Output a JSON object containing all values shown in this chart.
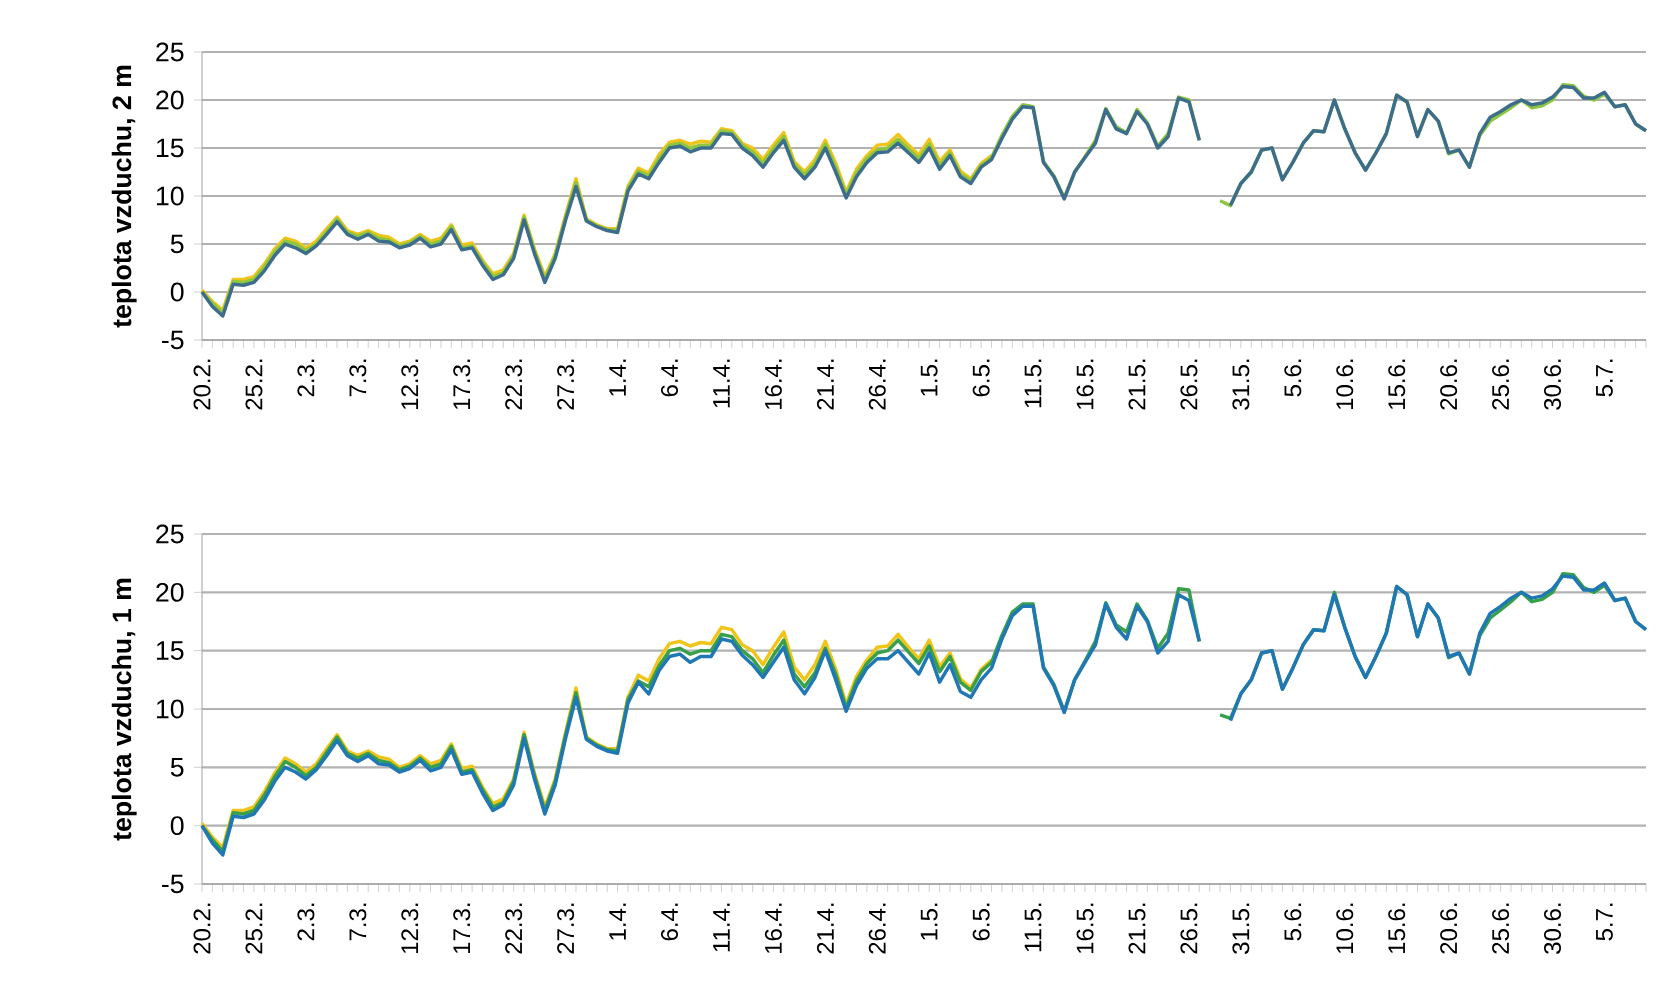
{
  "chart_data": [
    {
      "type": "line",
      "ylabel": "teplota vzduchu, 2 m",
      "categories": [
        "20.2.",
        null,
        null,
        null,
        null,
        "25.2.",
        null,
        null,
        null,
        null,
        "2.3.",
        null,
        null,
        null,
        null,
        "7.3.",
        null,
        null,
        null,
        null,
        "12.3.",
        null,
        null,
        null,
        null,
        "17.3.",
        null,
        null,
        null,
        null,
        "22.3.",
        null,
        null,
        null,
        null,
        "27.3.",
        null,
        null,
        null,
        null,
        "1.4.",
        null,
        null,
        null,
        null,
        "6.4.",
        null,
        null,
        null,
        null,
        "11.4.",
        null,
        null,
        null,
        null,
        "16.4.",
        null,
        null,
        null,
        null,
        "21.4.",
        null,
        null,
        null,
        null,
        "26.4.",
        null,
        null,
        null,
        null,
        "1.5.",
        null,
        null,
        null,
        null,
        "6.5.",
        null,
        null,
        null,
        null,
        "11.5.",
        null,
        null,
        null,
        null,
        "16.5.",
        null,
        null,
        null,
        null,
        "21.5.",
        null,
        null,
        null,
        null,
        "26.5.",
        null,
        null,
        null,
        null,
        "31.5.",
        null,
        null,
        null,
        null,
        "5.6.",
        null,
        null,
        null,
        null,
        "10.6.",
        null,
        null,
        null,
        null,
        "15.6.",
        null,
        null,
        null,
        null,
        "20.6.",
        null,
        null,
        null,
        null,
        "25.6.",
        null,
        null,
        null,
        null,
        "30.6.",
        null,
        null,
        null,
        null,
        "5.7.",
        null,
        null,
        null,
        null
      ],
      "ylim": [
        -5,
        25
      ],
      "yticks": [
        -5,
        0,
        5,
        10,
        15,
        20,
        25
      ],
      "grid": "y",
      "series": [
        {
          "color": "#f0c419",
          "values": [
            0.2,
            -1.0,
            -1.9,
            1.3,
            1.3,
            1.6,
            2.9,
            4.5,
            5.6,
            5.3,
            4.6,
            5.3,
            6.6,
            7.8,
            6.4,
            6.0,
            6.4,
            5.9,
            5.7,
            5.0,
            5.3,
            6.0,
            5.3,
            5.6,
            7.0,
            4.9,
            5.1,
            3.3,
            1.9,
            2.3,
            4.0,
            8.0,
            4.5,
            1.6,
            4.0,
            8.0,
            11.8,
            7.6,
            7.0,
            6.6,
            6.6,
            11.0,
            12.9,
            12.4,
            14.3,
            15.6,
            15.8,
            15.4,
            15.7,
            15.6,
            17.0,
            16.8,
            15.5,
            15.0,
            13.8,
            15.3,
            16.6,
            13.6,
            12.5,
            13.8,
            15.8,
            13.4,
            10.4,
            12.8,
            14.2,
            15.3,
            15.4,
            16.4,
            15.3,
            14.3,
            15.9,
            13.6,
            14.8,
            12.6,
            11.8,
            13.4,
            14.2,
            null,
            null,
            null,
            null,
            null,
            null,
            null,
            null,
            null,
            null,
            null,
            null,
            null,
            null,
            null,
            null,
            null,
            null,
            null,
            null,
            null,
            null,
            null,
            null,
            null,
            null,
            null,
            null,
            null,
            null,
            null,
            null,
            null,
            null,
            null,
            null,
            null,
            null,
            null,
            null,
            null,
            null,
            null,
            null,
            null,
            null,
            null,
            null,
            null,
            null,
            null,
            null,
            null,
            null,
            null,
            null,
            null,
            null,
            null,
            null,
            null,
            null,
            null
          ]
        },
        {
          "color": "#8dc63f",
          "values": [
            0,
            -1.2,
            -2.2,
            1.1,
            1.0,
            1.3,
            2.6,
            4.2,
            5.3,
            5.0,
            4.3,
            5.0,
            6.3,
            7.6,
            6.2,
            5.8,
            6.2,
            5.6,
            5.4,
            4.8,
            5.1,
            5.8,
            5.0,
            5.3,
            6.8,
            4.6,
            4.8,
            3.1,
            1.6,
            2.0,
            3.8,
            7.8,
            4.3,
            1.3,
            3.8,
            7.8,
            11.4,
            7.5,
            6.9,
            6.5,
            6.4,
            10.8,
            12.6,
            12.1,
            13.9,
            15.3,
            15.5,
            15.0,
            15.3,
            15.3,
            16.8,
            16.6,
            15.3,
            14.6,
            13.4,
            14.9,
            16.2,
            13.3,
            12.2,
            13.4,
            15.4,
            13.0,
            10.1,
            12.4,
            13.9,
            14.8,
            15.0,
            15.9,
            14.9,
            13.9,
            15.4,
            13.2,
            14.5,
            12.3,
            11.6,
            13.2,
            14.0,
            16.3,
            18.3,
            19.5,
            19.3,
            13.6,
            12.1,
            9.8,
            12.5,
            14.1,
            15.8,
            19.1,
            17.2,
            16.6,
            19.0,
            17.6,
            15.2,
            16.5,
            20.3,
            20.0,
            15.8,
            null,
            9.5,
            9.0,
            11.3,
            12.5,
            14.8,
            15.0,
            11.7,
            13.5,
            15.5,
            16.8,
            16.7,
            20.0,
            17.0,
            14.5,
            12.7,
            14.5,
            16.5,
            20.5,
            19.8,
            16.2,
            19.0,
            17.8,
            14.4,
            14.8,
            13.0,
            16.3,
            17.8,
            18.5,
            19.2,
            20.0,
            19.2,
            19.4,
            20.0,
            21.6,
            21.5,
            20.4,
            20.0,
            20.6,
            19.3,
            19.5,
            17.5,
            16.8
          ]
        },
        {
          "color": "#3d6d8c",
          "values": [
            0,
            -1.5,
            -2.5,
            0.8,
            0.7,
            1.0,
            2.2,
            3.8,
            5.0,
            4.6,
            4.0,
            4.8,
            6.0,
            7.3,
            6.0,
            5.5,
            6.0,
            5.3,
            5.2,
            4.6,
            4.9,
            5.6,
            4.7,
            5.0,
            6.5,
            4.4,
            4.6,
            2.8,
            1.3,
            1.8,
            3.5,
            7.5,
            4.0,
            1.0,
            3.5,
            7.5,
            11.0,
            7.4,
            6.8,
            6.4,
            6.2,
            10.5,
            12.3,
            11.8,
            13.5,
            15.0,
            15.2,
            14.6,
            15.0,
            15.0,
            16.5,
            16.4,
            15.0,
            14.2,
            13.0,
            14.5,
            15.8,
            13.0,
            11.8,
            13.0,
            15.0,
            12.5,
            9.8,
            12.0,
            13.5,
            14.5,
            14.6,
            15.5,
            14.5,
            13.5,
            15.0,
            12.8,
            14.2,
            12.0,
            11.3,
            13.0,
            13.8,
            16.0,
            18.0,
            19.3,
            19.2,
            13.5,
            12.0,
            9.7,
            12.5,
            14.0,
            15.5,
            19.0,
            17.0,
            16.5,
            18.8,
            17.5,
            15.0,
            16.2,
            20.2,
            19.8,
            15.8,
            null,
            null,
            9.0,
            11.3,
            12.5,
            14.8,
            15.0,
            11.7,
            13.5,
            15.5,
            16.8,
            16.7,
            20.0,
            17.0,
            14.5,
            12.7,
            14.5,
            16.5,
            20.5,
            19.8,
            16.2,
            19.0,
            17.8,
            14.5,
            14.8,
            13.0,
            16.5,
            18.2,
            18.8,
            19.5,
            20.0,
            19.5,
            19.7,
            20.3,
            21.4,
            21.3,
            20.2,
            20.2,
            20.8,
            19.3,
            19.5,
            17.5,
            16.8
          ]
        }
      ]
    },
    {
      "type": "line",
      "ylabel": "teplota vzduchu, 1 m",
      "categories": [
        "20.2.",
        null,
        null,
        null,
        null,
        "25.2.",
        null,
        null,
        null,
        null,
        "2.3.",
        null,
        null,
        null,
        null,
        "7.3.",
        null,
        null,
        null,
        null,
        "12.3.",
        null,
        null,
        null,
        null,
        "17.3.",
        null,
        null,
        null,
        null,
        "22.3.",
        null,
        null,
        null,
        null,
        "27.3.",
        null,
        null,
        null,
        null,
        "1.4.",
        null,
        null,
        null,
        null,
        "6.4.",
        null,
        null,
        null,
        null,
        "11.4.",
        null,
        null,
        null,
        null,
        "16.4.",
        null,
        null,
        null,
        null,
        "21.4.",
        null,
        null,
        null,
        null,
        "26.4.",
        null,
        null,
        null,
        null,
        "1.5.",
        null,
        null,
        null,
        null,
        "6.5.",
        null,
        null,
        null,
        null,
        "11.5.",
        null,
        null,
        null,
        null,
        "16.5.",
        null,
        null,
        null,
        null,
        "21.5.",
        null,
        null,
        null,
        null,
        "26.5.",
        null,
        null,
        null,
        null,
        "31.5.",
        null,
        null,
        null,
        null,
        "5.6.",
        null,
        null,
        null,
        null,
        "10.6.",
        null,
        null,
        null,
        null,
        "15.6.",
        null,
        null,
        null,
        null,
        "20.6.",
        null,
        null,
        null,
        null,
        "25.6.",
        null,
        null,
        null,
        null,
        "30.6.",
        null,
        null,
        null,
        null,
        "5.7.",
        null,
        null,
        null,
        null
      ],
      "ylim": [
        -5,
        25
      ],
      "yticks": [
        -5,
        0,
        5,
        10,
        15,
        20,
        25
      ],
      "grid": "y",
      "series": [
        {
          "color": "#f0c419",
          "values": [
            0.2,
            -1.0,
            -1.9,
            1.3,
            1.3,
            1.6,
            2.9,
            4.5,
            5.8,
            5.3,
            4.6,
            5.3,
            6.6,
            7.8,
            6.4,
            6.0,
            6.4,
            5.9,
            5.7,
            5.0,
            5.3,
            6.0,
            5.3,
            5.6,
            7.0,
            4.9,
            5.1,
            3.3,
            1.9,
            2.3,
            4.0,
            8.0,
            4.5,
            1.6,
            4.0,
            8.0,
            11.8,
            7.6,
            7.0,
            6.6,
            6.6,
            11.0,
            12.9,
            12.4,
            14.3,
            15.6,
            15.8,
            15.4,
            15.7,
            15.6,
            17.0,
            16.8,
            15.5,
            15.0,
            13.8,
            15.3,
            16.6,
            13.6,
            12.5,
            13.8,
            15.8,
            13.4,
            10.4,
            12.8,
            14.2,
            15.3,
            15.4,
            16.4,
            15.3,
            14.3,
            15.9,
            13.6,
            14.8,
            12.6,
            11.8,
            13.4,
            14.2,
            null,
            null,
            null,
            null,
            null,
            null,
            null,
            null,
            null,
            null,
            null,
            null,
            null,
            null,
            null,
            null,
            null,
            null,
            null,
            null,
            null,
            null,
            null,
            null,
            null,
            null,
            null,
            null,
            null,
            null,
            null,
            null,
            null,
            null,
            null,
            null,
            null,
            null,
            null,
            null,
            null,
            null,
            null,
            null,
            null,
            null,
            null,
            null,
            null,
            null,
            null,
            null,
            null,
            null,
            null,
            null,
            null,
            null,
            null,
            null,
            null,
            null,
            null
          ]
        },
        {
          "color": "#37a04a",
          "values": [
            0,
            -1.2,
            -2.2,
            1.1,
            1.0,
            1.3,
            2.6,
            4.2,
            5.5,
            5.0,
            4.3,
            5.0,
            6.3,
            7.6,
            6.2,
            5.8,
            6.2,
            5.6,
            5.4,
            4.8,
            5.1,
            5.8,
            5.0,
            5.3,
            6.8,
            4.6,
            4.8,
            3.1,
            1.6,
            2.0,
            3.8,
            7.8,
            4.3,
            1.3,
            3.8,
            7.8,
            11.4,
            7.5,
            6.9,
            6.5,
            6.4,
            10.8,
            12.4,
            11.9,
            13.7,
            15.0,
            15.2,
            14.7,
            15.0,
            15.0,
            16.4,
            16.2,
            15.0,
            14.3,
            13.1,
            14.6,
            15.9,
            13.0,
            11.9,
            13.1,
            15.2,
            13.0,
            10.1,
            12.4,
            13.9,
            14.8,
            15.0,
            15.9,
            14.9,
            13.9,
            15.4,
            13.2,
            14.5,
            12.3,
            11.6,
            13.2,
            14.0,
            16.3,
            18.3,
            19.0,
            19.0,
            13.6,
            12.1,
            9.8,
            12.5,
            14.1,
            15.8,
            19.1,
            17.2,
            16.6,
            19.0,
            17.6,
            15.2,
            16.5,
            20.3,
            20.2,
            15.8,
            null,
            9.5,
            9.2,
            11.3,
            12.5,
            14.8,
            15.0,
            11.7,
            13.5,
            15.5,
            16.8,
            16.7,
            20.0,
            17.0,
            14.5,
            12.7,
            14.5,
            16.5,
            20.5,
            19.8,
            16.2,
            19.0,
            17.8,
            14.4,
            14.8,
            13.0,
            16.3,
            17.8,
            18.5,
            19.2,
            20.0,
            19.2,
            19.4,
            20.0,
            21.6,
            21.5,
            20.4,
            20.0,
            20.6,
            19.3,
            19.5,
            17.5,
            16.8
          ]
        },
        {
          "color": "#1f77b4",
          "values": [
            0,
            -1.5,
            -2.5,
            0.8,
            0.7,
            1.0,
            2.2,
            3.8,
            5.0,
            4.6,
            4.0,
            4.8,
            6.0,
            7.3,
            6.0,
            5.5,
            6.0,
            5.3,
            5.2,
            4.6,
            4.9,
            5.6,
            4.7,
            5.0,
            6.5,
            4.4,
            4.6,
            2.8,
            1.3,
            1.8,
            3.5,
            7.5,
            4.0,
            1.0,
            3.5,
            7.5,
            11.0,
            7.4,
            6.8,
            6.4,
            6.2,
            10.5,
            12.3,
            11.3,
            13.3,
            14.5,
            14.7,
            14.0,
            14.5,
            14.5,
            16.0,
            15.8,
            14.6,
            13.8,
            12.7,
            14.0,
            15.3,
            12.5,
            11.3,
            12.7,
            15.0,
            12.5,
            9.8,
            12.0,
            13.5,
            14.3,
            14.3,
            15.0,
            14.0,
            13.0,
            14.8,
            12.3,
            13.8,
            11.5,
            11.0,
            12.5,
            13.5,
            16.0,
            18.0,
            18.8,
            18.8,
            13.5,
            12.0,
            9.7,
            12.5,
            14.0,
            15.5,
            19.0,
            17.0,
            16.0,
            18.8,
            17.5,
            14.8,
            15.8,
            19.8,
            19.3,
            15.8,
            null,
            null,
            9.0,
            11.3,
            12.5,
            14.8,
            15.0,
            11.7,
            13.5,
            15.5,
            16.8,
            16.7,
            19.8,
            17.0,
            14.5,
            12.7,
            14.5,
            16.5,
            20.5,
            19.8,
            16.2,
            19.0,
            17.8,
            14.5,
            14.8,
            13.0,
            16.5,
            18.2,
            18.8,
            19.5,
            20.0,
            19.5,
            19.7,
            20.3,
            21.4,
            21.3,
            20.2,
            20.2,
            20.8,
            19.3,
            19.5,
            17.5,
            16.8
          ]
        }
      ]
    }
  ]
}
